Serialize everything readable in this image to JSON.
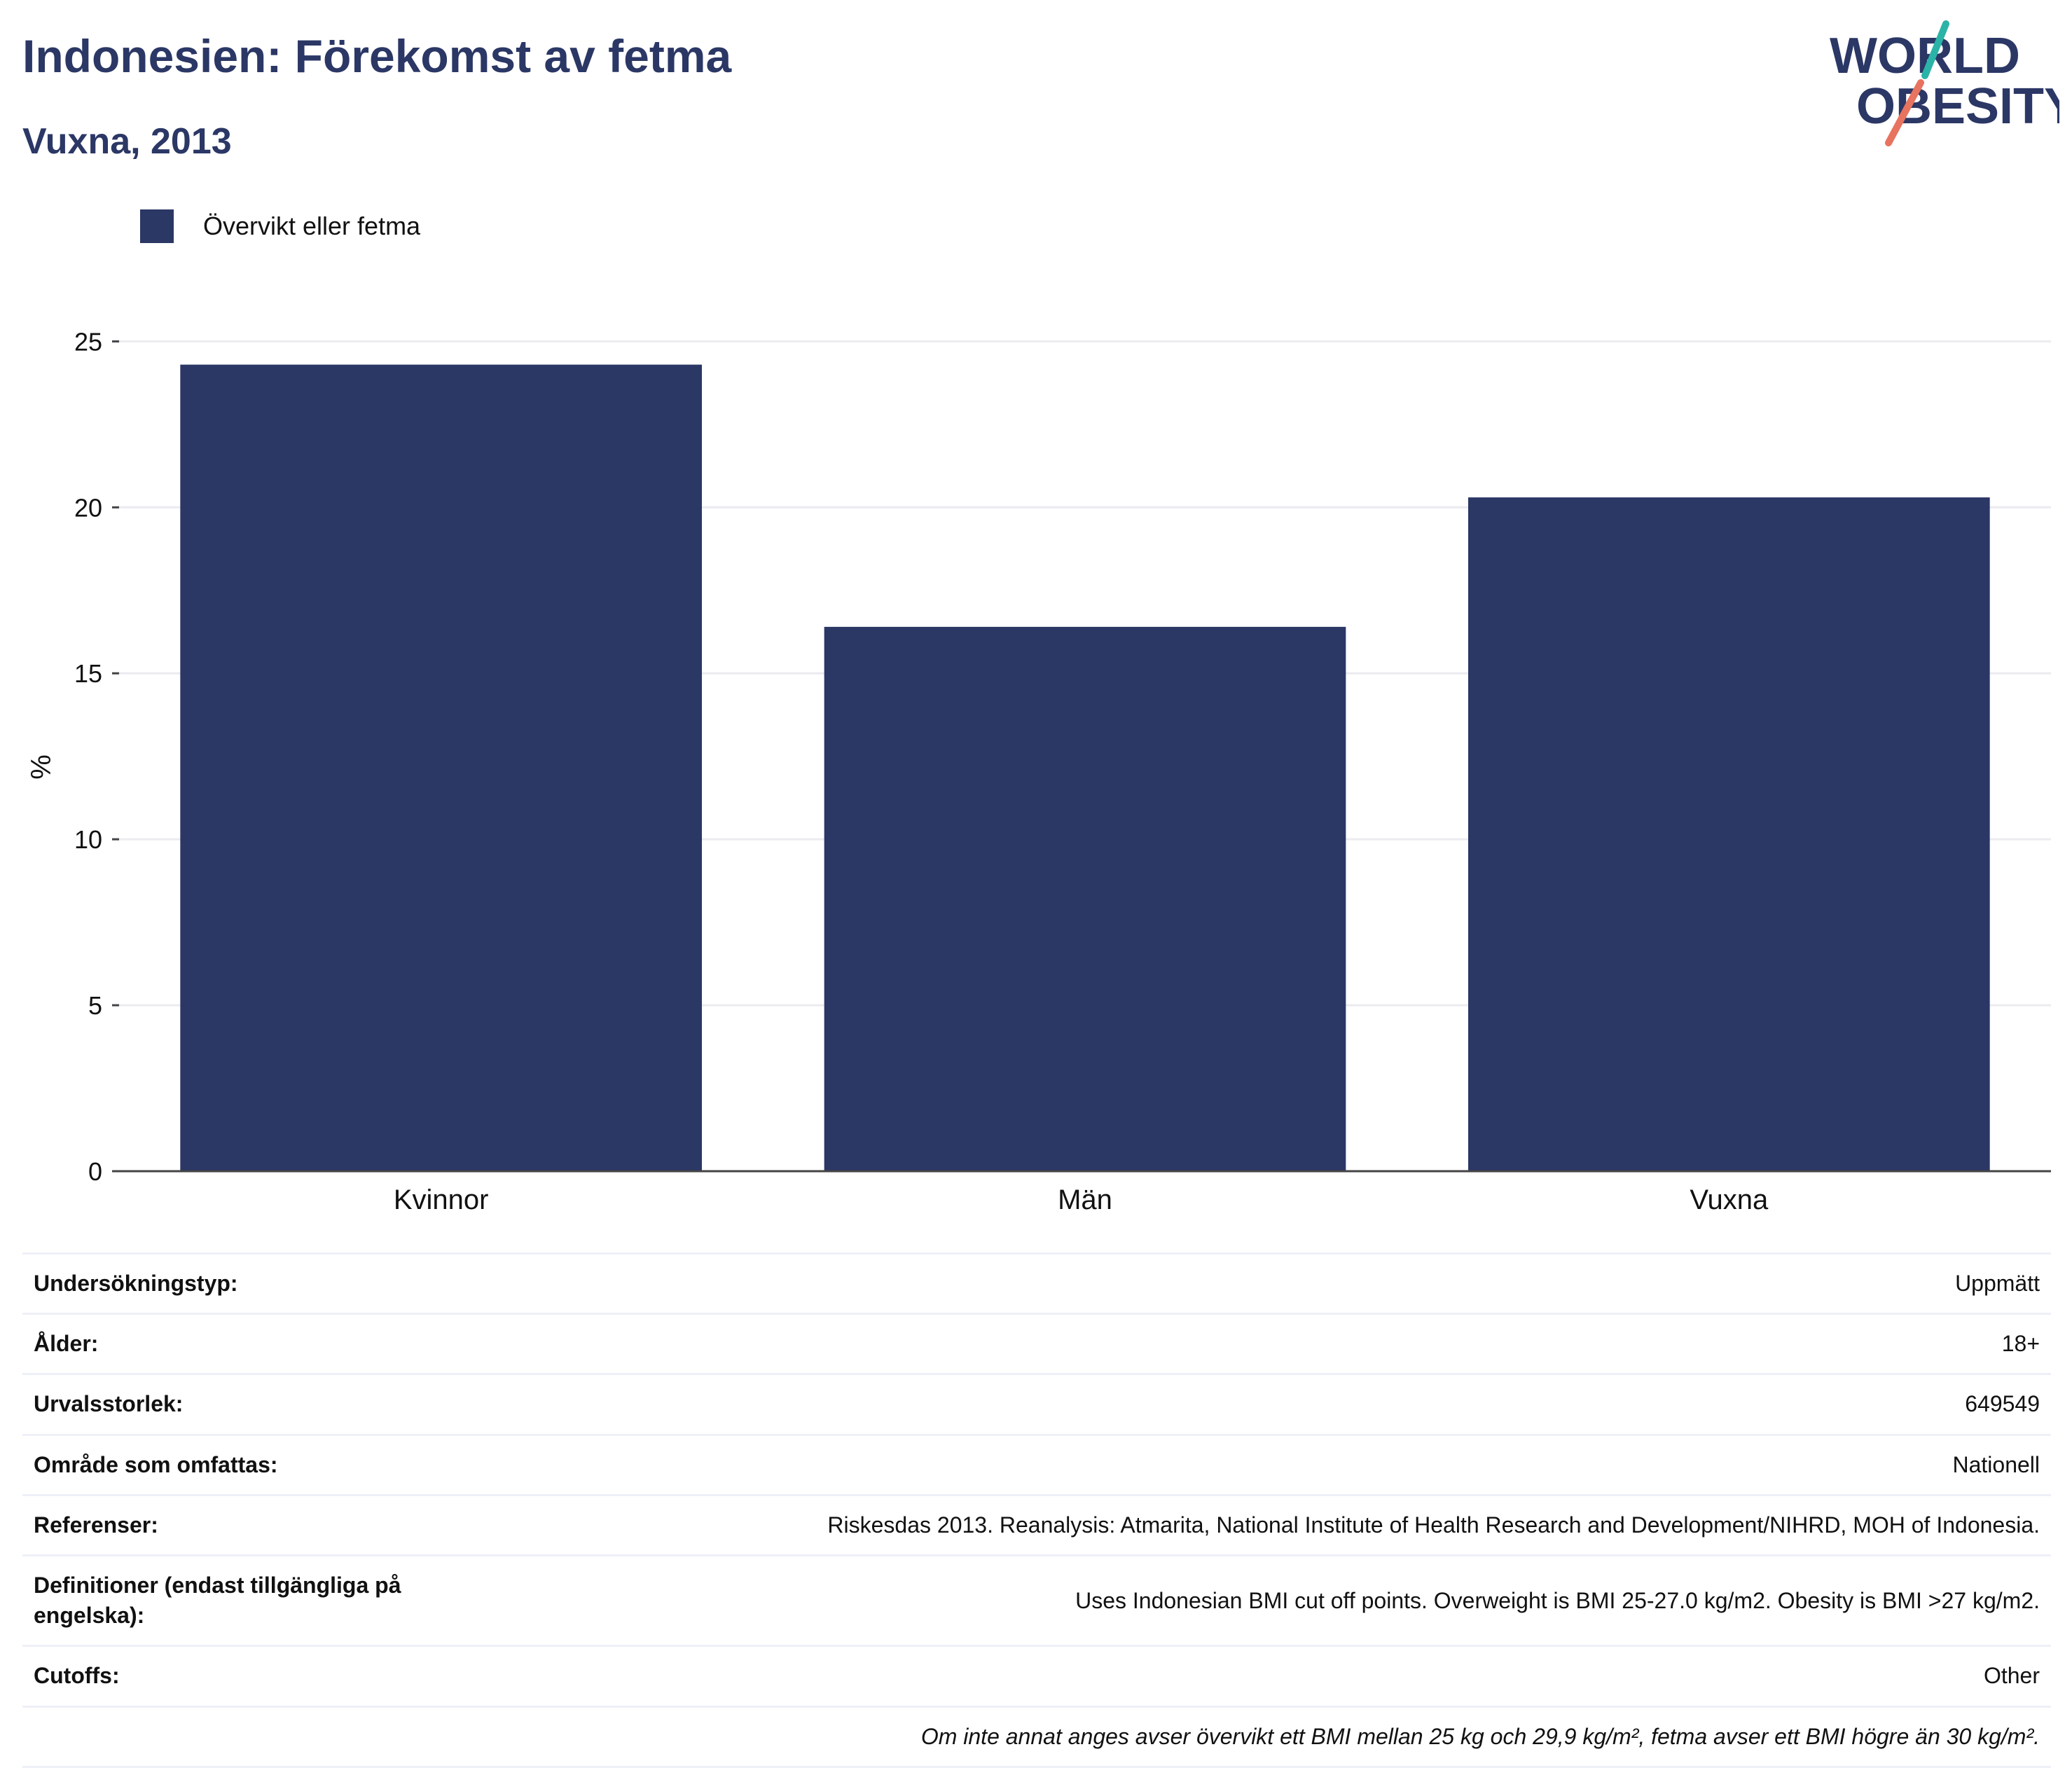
{
  "header": {
    "title": "Indonesien: Förekomst av fetma",
    "subtitle": "Vuxna, 2013"
  },
  "logo": {
    "line1": "WORLD",
    "line2": "OBESITY",
    "colors": {
      "text": "#2b3765",
      "teal": "#2bb3a7",
      "coral": "#e8735f"
    }
  },
  "colors": {
    "bar": "#2b3765",
    "grid": "#ebebf0",
    "axis": "#444444",
    "text": "#111111"
  },
  "chart_data": {
    "type": "bar",
    "categories": [
      "Kvinnor",
      "Män",
      "Vuxna"
    ],
    "series": [
      {
        "name": "Övervikt eller fetma",
        "values": [
          24.3,
          16.4,
          20.3
        ]
      }
    ],
    "ylabel": "%",
    "ylim": [
      0,
      26
    ],
    "yticks": [
      0,
      5,
      10,
      15,
      20,
      25
    ],
    "grid": true,
    "legend": "top-left"
  },
  "info": {
    "rows": [
      {
        "label": "Undersökningstyp:",
        "value": "Uppmätt"
      },
      {
        "label": "Ålder:",
        "value": "18+"
      },
      {
        "label": "Urvalsstorlek:",
        "value": "649549"
      },
      {
        "label": "Område som omfattas:",
        "value": "Nationell"
      },
      {
        "label": "Referenser:",
        "value": "Riskesdas 2013. Reanalysis: Atmarita, National Institute of Health Research and Development/NIHRD, MOH of Indonesia."
      },
      {
        "label": "Definitioner (endast tillgängliga på engelska):",
        "value": "Uses Indonesian BMI cut off points. Overweight is BMI 25-27.0 kg/m2. Obesity is BMI >27 kg/m2."
      },
      {
        "label": "Cutoffs:",
        "value": "Other"
      }
    ],
    "note": "Om inte annat anges avser övervikt ett BMI mellan 25 kg och 29,9 kg/m², fetma avser ett BMI högre än 30 kg/m²."
  }
}
